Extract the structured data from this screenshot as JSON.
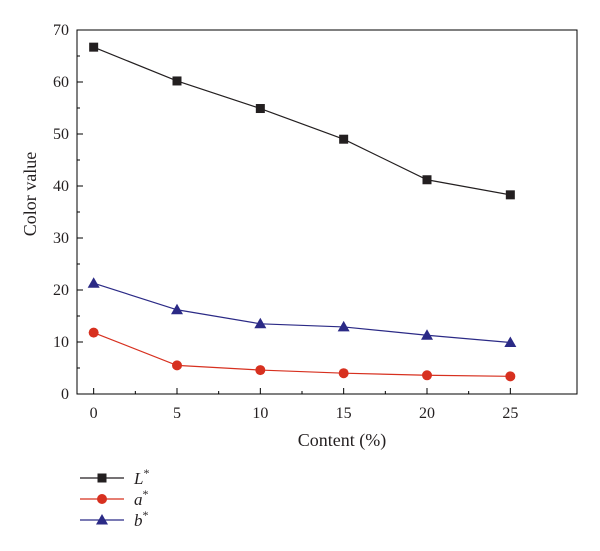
{
  "chart_data": {
    "type": "line",
    "title": "",
    "xlabel": "Content (%)",
    "ylabel": "Color value",
    "x": [
      0,
      5,
      10,
      15,
      20,
      25
    ],
    "xticks": [
      0,
      5,
      10,
      15,
      20,
      25
    ],
    "yticks": [
      0,
      10,
      20,
      30,
      40,
      50,
      60,
      70
    ],
    "xlim": [
      -1,
      29
    ],
    "ylim": [
      0,
      70
    ],
    "grid": false,
    "legend_position": "bottom-left",
    "series": [
      {
        "name": "L",
        "sup": "*",
        "marker": "square",
        "color": "#231f20",
        "values": [
          66.7,
          60.2,
          54.9,
          49.0,
          41.2,
          38.3
        ]
      },
      {
        "name": "a",
        "sup": "*",
        "marker": "circle",
        "color": "#d7301f",
        "values": [
          11.8,
          5.5,
          4.6,
          4.0,
          3.6,
          3.4
        ]
      },
      {
        "name": "b",
        "sup": "*",
        "marker": "triangle",
        "color": "#2b2a86",
        "values": [
          21.3,
          16.2,
          13.5,
          12.9,
          11.3,
          9.9
        ]
      }
    ]
  }
}
